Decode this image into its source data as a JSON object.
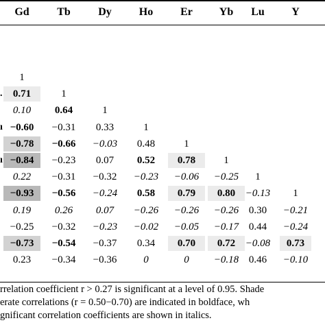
{
  "table": {
    "headers": [
      "Gd",
      "Tb",
      "Dy",
      "Ho",
      "Er",
      "Yb",
      "Lu",
      "Y"
    ],
    "row_edges": [
      "",
      "",
      ".",
      "",
      "ı",
      "",
      "ı",
      "",
      "",
      "",
      "",
      "",
      "",
      ""
    ],
    "rows": [
      [],
      [
        {
          "v": "1"
        }
      ],
      [
        {
          "v": "0.71",
          "b": true,
          "s": "light"
        },
        {
          "v": "1"
        }
      ],
      [
        {
          "v": "0.10",
          "i": true
        },
        {
          "v": "0.64",
          "b": true
        },
        {
          "v": "1"
        }
      ],
      [
        {
          "v": "−0.60",
          "b": true
        },
        {
          "v": "−0.31"
        },
        {
          "v": "0.33"
        },
        {
          "v": "1"
        }
      ],
      [
        {
          "v": "−0.78",
          "b": true,
          "s": "med"
        },
        {
          "v": "−0.66",
          "b": true
        },
        {
          "v": "−0.03",
          "i": true
        },
        {
          "v": "0.48"
        },
        {
          "v": "1"
        }
      ],
      [
        {
          "v": "−0.84",
          "b": true,
          "s": "dark"
        },
        {
          "v": "−0.23"
        },
        {
          "v": "0.07"
        },
        {
          "v": "0.52",
          "b": true
        },
        {
          "v": "0.78",
          "b": true,
          "s": "light"
        },
        {
          "v": "1"
        }
      ],
      [
        {
          "v": "0.22",
          "i": true
        },
        {
          "v": "−0.31"
        },
        {
          "v": "−0.32"
        },
        {
          "v": "−0.23",
          "i": true
        },
        {
          "v": "−0.06",
          "i": true
        },
        {
          "v": "−0.25",
          "i": true
        },
        {
          "v": "1"
        }
      ],
      [
        {
          "v": "−0.93",
          "b": true,
          "s": "dark"
        },
        {
          "v": "−0.56",
          "b": true
        },
        {
          "v": "−0.24",
          "i": true
        },
        {
          "v": "0.58",
          "b": true
        },
        {
          "v": "0.79",
          "b": true,
          "s": "light"
        },
        {
          "v": "0.80",
          "b": true,
          "s": "light"
        },
        {
          "v": "−0.13",
          "i": true
        },
        {
          "v": "1"
        }
      ],
      [
        {
          "v": "0.19",
          "i": true
        },
        {
          "v": "0.26",
          "i": true
        },
        {
          "v": "0.07",
          "i": true
        },
        {
          "v": "−0.26",
          "i": true
        },
        {
          "v": "−0.26",
          "i": true
        },
        {
          "v": "−0.26",
          "i": true
        },
        {
          "v": "0.30"
        },
        {
          "v": "−0.21",
          "i": true
        }
      ],
      [
        {
          "v": "−0.25"
        },
        {
          "v": "−0.32"
        },
        {
          "v": "−0.23",
          "i": true
        },
        {
          "v": "−0.02",
          "i": true
        },
        {
          "v": "−0.05",
          "i": true
        },
        {
          "v": "−0.17",
          "i": true
        },
        {
          "v": "0.44"
        },
        {
          "v": "−0.24",
          "i": true
        }
      ],
      [
        {
          "v": "−0.73",
          "b": true,
          "s": "med"
        },
        {
          "v": "−0.54",
          "b": true
        },
        {
          "v": "−0.37"
        },
        {
          "v": "0.34"
        },
        {
          "v": "0.70",
          "b": true,
          "s": "light"
        },
        {
          "v": "0.72",
          "b": true,
          "s": "light"
        },
        {
          "v": "−0.08",
          "i": true
        },
        {
          "v": "0.73",
          "b": true,
          "s": "light"
        }
      ],
      [
        {
          "v": "0.23"
        },
        {
          "v": "−0.34"
        },
        {
          "v": "−0.36"
        },
        {
          "v": "0",
          "i": true
        },
        {
          "v": "0",
          "i": true
        },
        {
          "v": "−0.18",
          "i": true
        },
        {
          "v": "0.46"
        },
        {
          "v": "−0.10",
          "i": true
        }
      ]
    ]
  },
  "footnotes": [
    "rrelation coefficient r > 0.27 is significant at a level of 0.95. Shade",
    "erate correlations (r = 0.50−0.70) are indicated in boldface, wh",
    "gnificant correlation coefficients are shown in italics."
  ]
}
